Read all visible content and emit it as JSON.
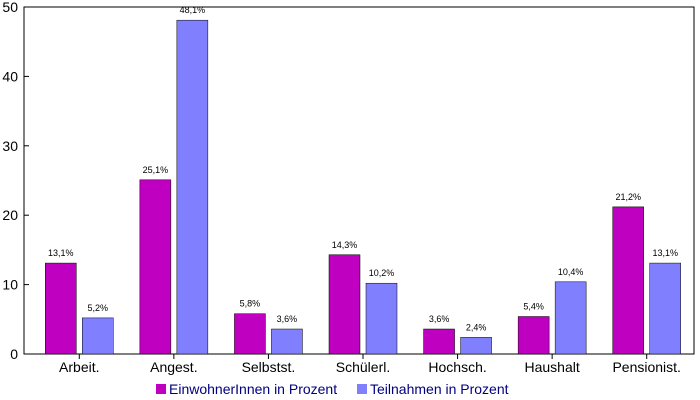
{
  "chart_data": {
    "type": "bar",
    "categories": [
      "Arbeit.",
      "Angest.",
      "Selbstst.",
      "Schülerl.",
      "Hochsch.",
      "Haushalt",
      "Pensionist."
    ],
    "series": [
      {
        "name": "EinwohnerInnen in Prozent",
        "values": [
          13.1,
          25.1,
          5.8,
          14.3,
          3.6,
          5.4,
          21.2
        ],
        "labels": [
          "13,1%",
          "25,1%",
          "5,8%",
          "14,3%",
          "3,6%",
          "5,4%",
          "21,2%"
        ],
        "color": "#c000c0"
      },
      {
        "name": "Teilnahmen in Prozent",
        "values": [
          5.2,
          48.1,
          3.6,
          10.2,
          2.4,
          10.4,
          13.1
        ],
        "labels": [
          "5,2%",
          "48,1%",
          "3,6%",
          "10,2%",
          "2,4%",
          "10,4%",
          "13,1%"
        ],
        "color": "#8080ff"
      }
    ],
    "yticks": [
      "0",
      "10",
      "20",
      "30",
      "40",
      "50"
    ],
    "ylim": [
      0,
      50
    ],
    "grid": false,
    "legend_position": "bottom"
  }
}
